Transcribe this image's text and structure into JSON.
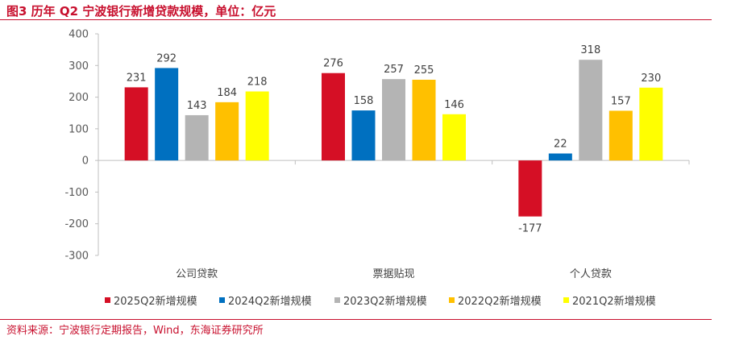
{
  "header": {
    "title": "图3  历年 Q2 宁波银行新增贷款规模，单位：亿元"
  },
  "footer": {
    "source": "资料来源：宁波银行定期报告，Wind，东海证券研究所"
  },
  "chart_data": {
    "type": "bar",
    "title": "",
    "xlabel": "",
    "ylabel": "",
    "categories": [
      "公司贷款",
      "票据贴现",
      "个人贷款"
    ],
    "series": [
      {
        "name": "2025Q2新增规模",
        "color": "#d50f25",
        "values": [
          231,
          276,
          -177
        ]
      },
      {
        "name": "2024Q2新增规模",
        "color": "#0070c0",
        "values": [
          292,
          158,
          22
        ]
      },
      {
        "name": "2023Q2新增规模",
        "color": "#b4b4b4",
        "values": [
          143,
          257,
          318
        ]
      },
      {
        "name": "2022Q2新增规模",
        "color": "#ffc000",
        "values": [
          184,
          255,
          157
        ]
      },
      {
        "name": "2021Q2新增规模",
        "color": "#ffff00",
        "values": [
          218,
          146,
          230
        ]
      }
    ],
    "ylim": [
      -300,
      400
    ],
    "yticks": [
      -300,
      -200,
      -100,
      0,
      100,
      200,
      300,
      400
    ],
    "grid": false,
    "legend": "bottom"
  }
}
